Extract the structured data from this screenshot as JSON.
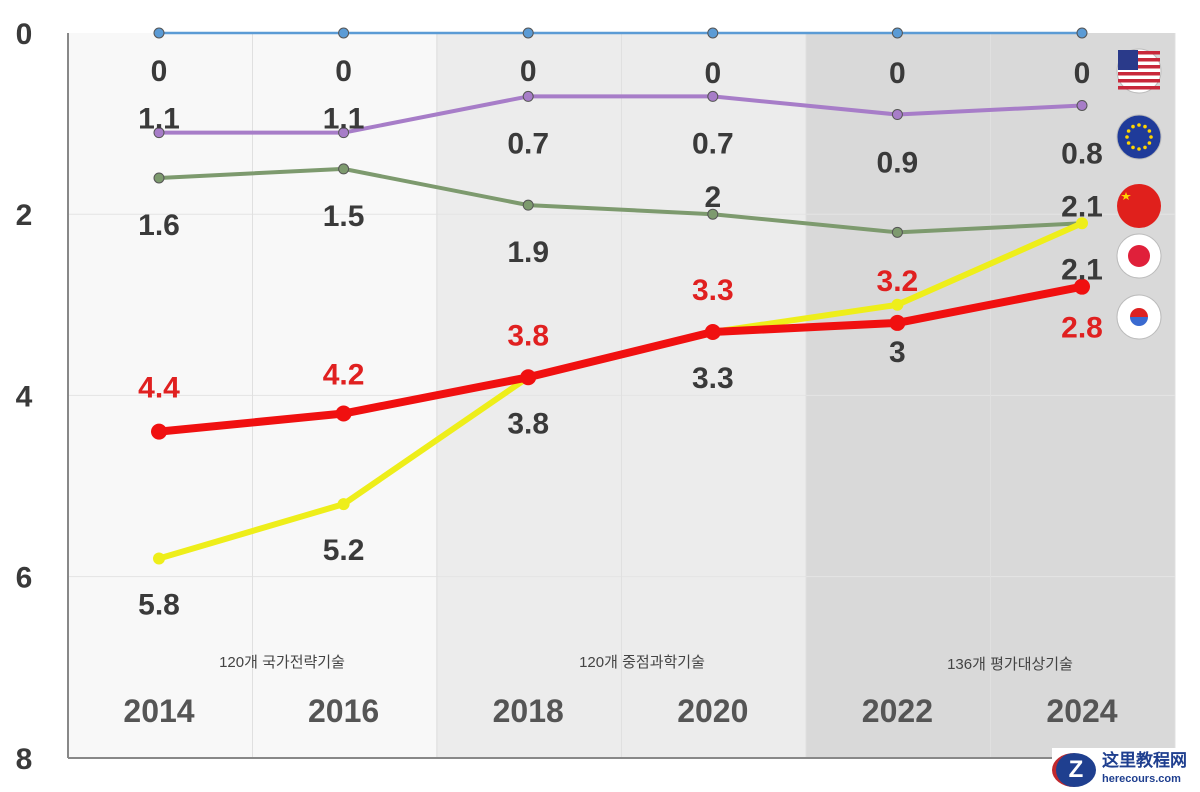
{
  "chart_data": {
    "type": "line",
    "x": [
      "2014",
      "2016",
      "2018",
      "2020",
      "2022",
      "2024"
    ],
    "ylim": [
      0,
      8
    ],
    "y_inverted": true,
    "yticks": [
      "0",
      "2",
      "4",
      "6",
      "8"
    ],
    "band_labels": [
      "120개 국가전략기술",
      "120개 중점과학기술",
      "136개 평가대상기술"
    ],
    "series": [
      {
        "name": "USA",
        "flag": "us-flag",
        "color": "#5b9bd5",
        "values": [
          0,
          0,
          0,
          0,
          0,
          0
        ],
        "labels": [
          "0",
          "0",
          "0",
          "0",
          "0",
          "0"
        ],
        "label_color": "#3a3a3a"
      },
      {
        "name": "EU",
        "flag": "eu-flag",
        "color": "#a77dc8",
        "values": [
          1.1,
          1.1,
          0.7,
          0.7,
          0.9,
          0.8
        ],
        "labels": [
          "1.1",
          "1.1",
          "0.7",
          "0.7",
          "0.9",
          "0.8"
        ],
        "label_color": "#3a3a3a"
      },
      {
        "name": "China",
        "flag": "cn-flag",
        "color": "#7d9a6e",
        "values": [
          1.6,
          1.5,
          1.9,
          2,
          2.2,
          2.1
        ],
        "labels": [
          "1.6",
          "1.5",
          "1.9",
          "2",
          "",
          "2.1"
        ],
        "label_color": "#3a3a3a"
      },
      {
        "name": "Japan",
        "flag": "jp-flag",
        "color": "#eeee1a",
        "values": [
          5.8,
          5.2,
          3.8,
          3.3,
          3,
          2.1
        ],
        "labels": [
          "5.8",
          "5.2",
          "3.8",
          "3.3",
          "3",
          "2.1"
        ],
        "label_color": "#3a3a3a"
      },
      {
        "name": "Korea",
        "flag": "kr-flag",
        "color": "#f01010",
        "values": [
          4.4,
          4.2,
          3.8,
          3.3,
          3.2,
          2.8
        ],
        "labels": [
          "4.4",
          "4.2",
          "3.8",
          "3.3",
          "3.2",
          "2.8"
        ],
        "label_color": "#e02020"
      }
    ]
  },
  "watermark": {
    "title": "这里教程网",
    "url": "herecours.com",
    "logo": "Z"
  }
}
